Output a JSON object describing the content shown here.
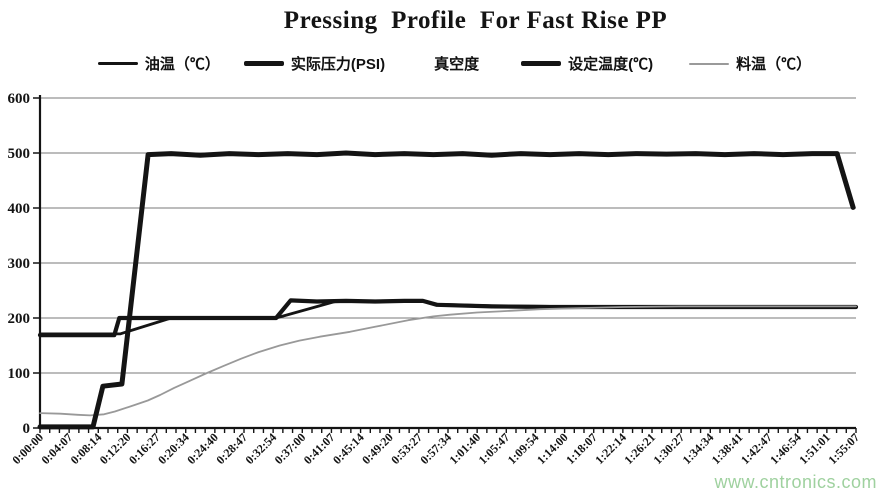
{
  "title": "Pressing  Profile  For Fast Rise PP",
  "watermark": "www.cntronics.com",
  "legend": {
    "items": [
      {
        "id": "oil-temp",
        "label": "油温（℃）",
        "swatch": "line",
        "color": "#141414",
        "weight": 3
      },
      {
        "id": "actual-pressure",
        "label": "实际压力(PSI)",
        "swatch": "line",
        "color": "#141414",
        "weight": 5
      },
      {
        "id": "vacuum",
        "label": "真空度",
        "swatch": "none",
        "color": "#ffffff",
        "weight": 0
      },
      {
        "id": "set-temp",
        "label": "设定温度(℃)",
        "swatch": "line",
        "color": "#141414",
        "weight": 5
      },
      {
        "id": "material-temp",
        "label": "料温（℃）",
        "swatch": "line",
        "color": "#9a9a9a",
        "weight": 2
      }
    ]
  },
  "chart_data": {
    "type": "line",
    "title": "Pressing Profile For Fast Rise PP",
    "xlabel": "",
    "ylabel": "",
    "ylim": [
      0,
      600
    ],
    "y_ticks": [
      0,
      100,
      200,
      300,
      400,
      500,
      600
    ],
    "grid": "horizontal",
    "legend_position": "top",
    "axis_color": "#141414",
    "grid_color": "#7a7a7a",
    "x_minor_ticks_per_interval": 3,
    "x_labels": [
      "0:00:00",
      "0:04:07",
      "0:08:14",
      "0:12:20",
      "0:16:27",
      "0:20:34",
      "0:24:40",
      "0:28:47",
      "0:32:54",
      "0:37:00",
      "0:41:07",
      "0:45:14",
      "0:49:20",
      "0:53:27",
      "0:57:34",
      "1:01:40",
      "1:05:47",
      "1:09:54",
      "1:14:00",
      "1:18:07",
      "1:22:14",
      "1:26:21",
      "1:30:27",
      "1:34:34",
      "1:38:41",
      "1:42:47",
      "1:46:54",
      "1:51:01",
      "1:55:07"
    ],
    "x_unit": "time (h:mm:ss), x given as label index",
    "series": [
      {
        "id": "oil-temp",
        "name": "油温（℃）",
        "color": "#141414",
        "width": 2.8,
        "points": [
          [
            0,
            171
          ],
          [
            2.75,
            171
          ],
          [
            4.5,
            200
          ],
          [
            8.1,
            200
          ],
          [
            10.2,
            231
          ],
          [
            13.14,
            231
          ],
          [
            13.62,
            225
          ],
          [
            15.5,
            222
          ],
          [
            17.5,
            221
          ],
          [
            28,
            221
          ]
        ]
      },
      {
        "id": "actual-pressure",
        "name": "实际压力(PSI)",
        "color": "#141414",
        "width": 5,
        "points": [
          [
            0,
            2
          ],
          [
            1.82,
            2
          ],
          [
            2.16,
            76
          ],
          [
            2.81,
            80
          ],
          [
            3.71,
            497
          ],
          [
            4.5,
            499
          ],
          [
            5.5,
            496
          ],
          [
            6.5,
            499
          ],
          [
            7.5,
            497
          ],
          [
            8.5,
            499
          ],
          [
            9.5,
            497
          ],
          [
            10.5,
            500
          ],
          [
            11.5,
            497
          ],
          [
            12.5,
            499
          ],
          [
            13.5,
            497
          ],
          [
            14.5,
            499
          ],
          [
            15.5,
            496
          ],
          [
            16.5,
            499
          ],
          [
            17.5,
            497
          ],
          [
            18.5,
            499
          ],
          [
            19.5,
            497
          ],
          [
            20.5,
            499
          ],
          [
            21.5,
            498
          ],
          [
            22.5,
            499
          ],
          [
            23.5,
            497
          ],
          [
            24.5,
            499
          ],
          [
            25.5,
            497
          ],
          [
            26.5,
            499
          ],
          [
            27.35,
            499
          ],
          [
            27.9,
            401
          ]
        ]
      },
      {
        "id": "vacuum",
        "name": "真空度",
        "color": "#ffffff",
        "width": 0,
        "points": []
      },
      {
        "id": "set-temp",
        "name": "设定温度(℃)",
        "color": "#141414",
        "width": 4.2,
        "points": [
          [
            0,
            169
          ],
          [
            2.55,
            169
          ],
          [
            2.72,
            200
          ],
          [
            8.1,
            200
          ],
          [
            8.6,
            232
          ],
          [
            9.5,
            230
          ],
          [
            10.5,
            231
          ],
          [
            11.5,
            230
          ],
          [
            12.5,
            231
          ],
          [
            13.14,
            231
          ],
          [
            13.62,
            224
          ],
          [
            15.5,
            221
          ],
          [
            17.5,
            220
          ],
          [
            28,
            220
          ]
        ]
      },
      {
        "id": "material-temp",
        "name": "料温（℃）",
        "color": "#999999",
        "width": 1.8,
        "points": [
          [
            0,
            27
          ],
          [
            0.7,
            26
          ],
          [
            1.3,
            24
          ],
          [
            1.72,
            23
          ],
          [
            2.2,
            25
          ],
          [
            2.57,
            30
          ],
          [
            3.26,
            42
          ],
          [
            3.7,
            50
          ],
          [
            4.12,
            60
          ],
          [
            4.6,
            73
          ],
          [
            5.2,
            87
          ],
          [
            5.73,
            100
          ],
          [
            6.3,
            113
          ],
          [
            6.9,
            126
          ],
          [
            7.5,
            138
          ],
          [
            8.23,
            150
          ],
          [
            8.9,
            159
          ],
          [
            9.6,
            166
          ],
          [
            10.64,
            175
          ],
          [
            11.5,
            184
          ],
          [
            12.63,
            196
          ],
          [
            13.5,
            203
          ],
          [
            14.07,
            206
          ],
          [
            15,
            210
          ],
          [
            15.78,
            212
          ],
          [
            17.16,
            216
          ],
          [
            18.5,
            218
          ],
          [
            20,
            220
          ],
          [
            22,
            221
          ],
          [
            28,
            221
          ]
        ]
      }
    ]
  }
}
